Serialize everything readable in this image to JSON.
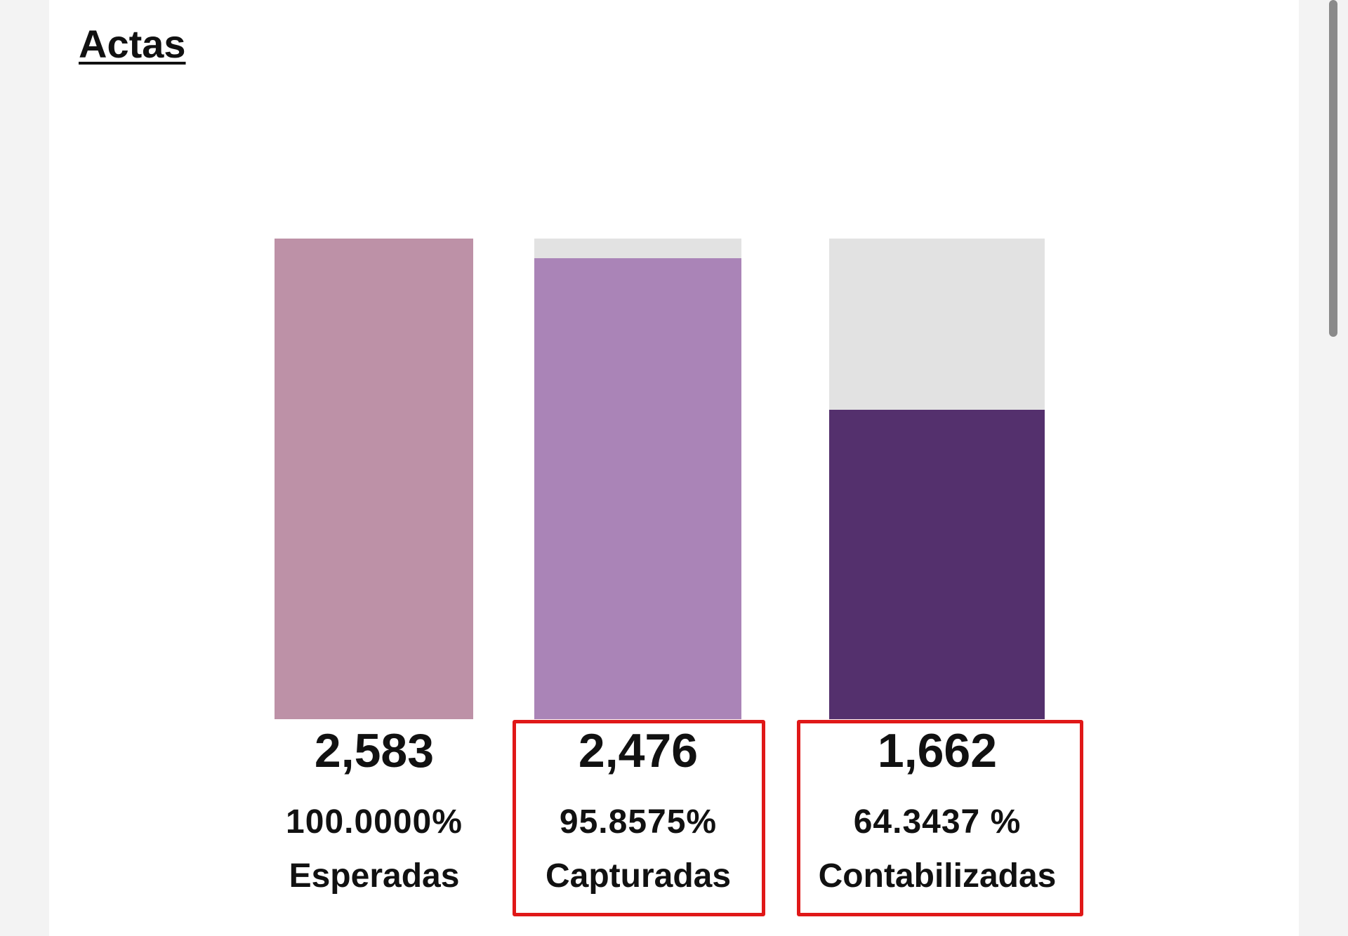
{
  "chart_data": {
    "type": "bar",
    "title": "Actas",
    "categories": [
      "Esperadas",
      "Capturadas",
      "Contabilizadas"
    ],
    "values": [
      2583,
      2476,
      1662
    ],
    "value_labels": [
      "2,583",
      "2,476",
      "1,662"
    ],
    "percent_labels": [
      "100.0000%",
      "95.8575%",
      "64.3437 %"
    ],
    "ylim": [
      0,
      2583
    ],
    "grid": false,
    "legend": "none",
    "colors": [
      "#bd91a7",
      "#aa84b7",
      "#54306d"
    ],
    "track_color": "#e2e2e2",
    "highlighted": [
      "Capturadas",
      "Contabilizadas"
    ],
    "highlight_color": "#e01818"
  }
}
